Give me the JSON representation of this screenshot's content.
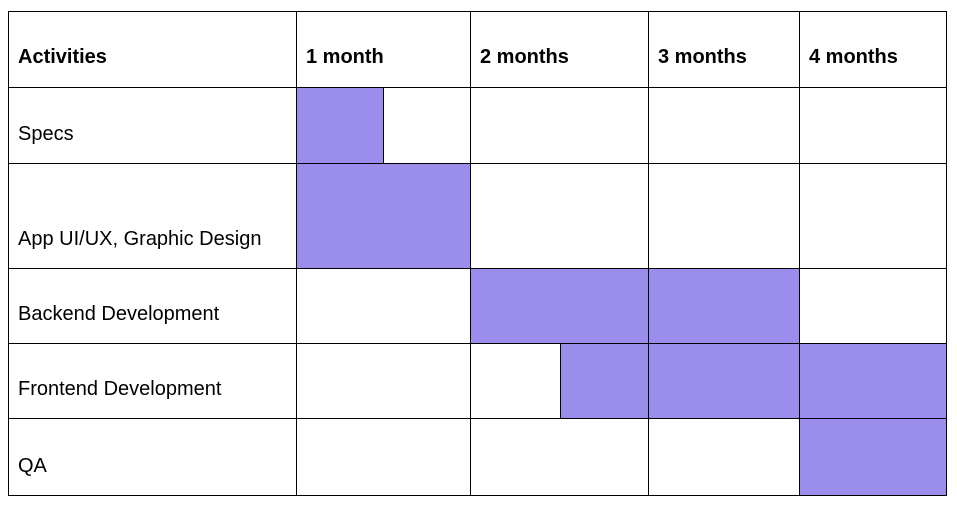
{
  "header": {
    "activities": "Activities",
    "periods": [
      "1 month",
      "2 months",
      "3 months",
      "4 months"
    ]
  },
  "rows": [
    {
      "activity": "Specs",
      "fill": [
        0.5,
        0,
        0,
        0
      ]
    },
    {
      "activity": "App UI/UX, Graphic Design",
      "fill": [
        1,
        0,
        0,
        0
      ]
    },
    {
      "activity": "Backend Development",
      "fill": [
        0,
        1,
        1,
        0
      ]
    },
    {
      "activity": "Frontend Development",
      "fill": [
        0,
        0.5,
        1,
        1
      ]
    },
    {
      "activity": "QA",
      "fill": [
        0,
        0,
        0,
        1
      ]
    }
  ],
  "colors": {
    "bar": "#9b8deb",
    "border": "#000000",
    "background": "#ffffff"
  }
}
